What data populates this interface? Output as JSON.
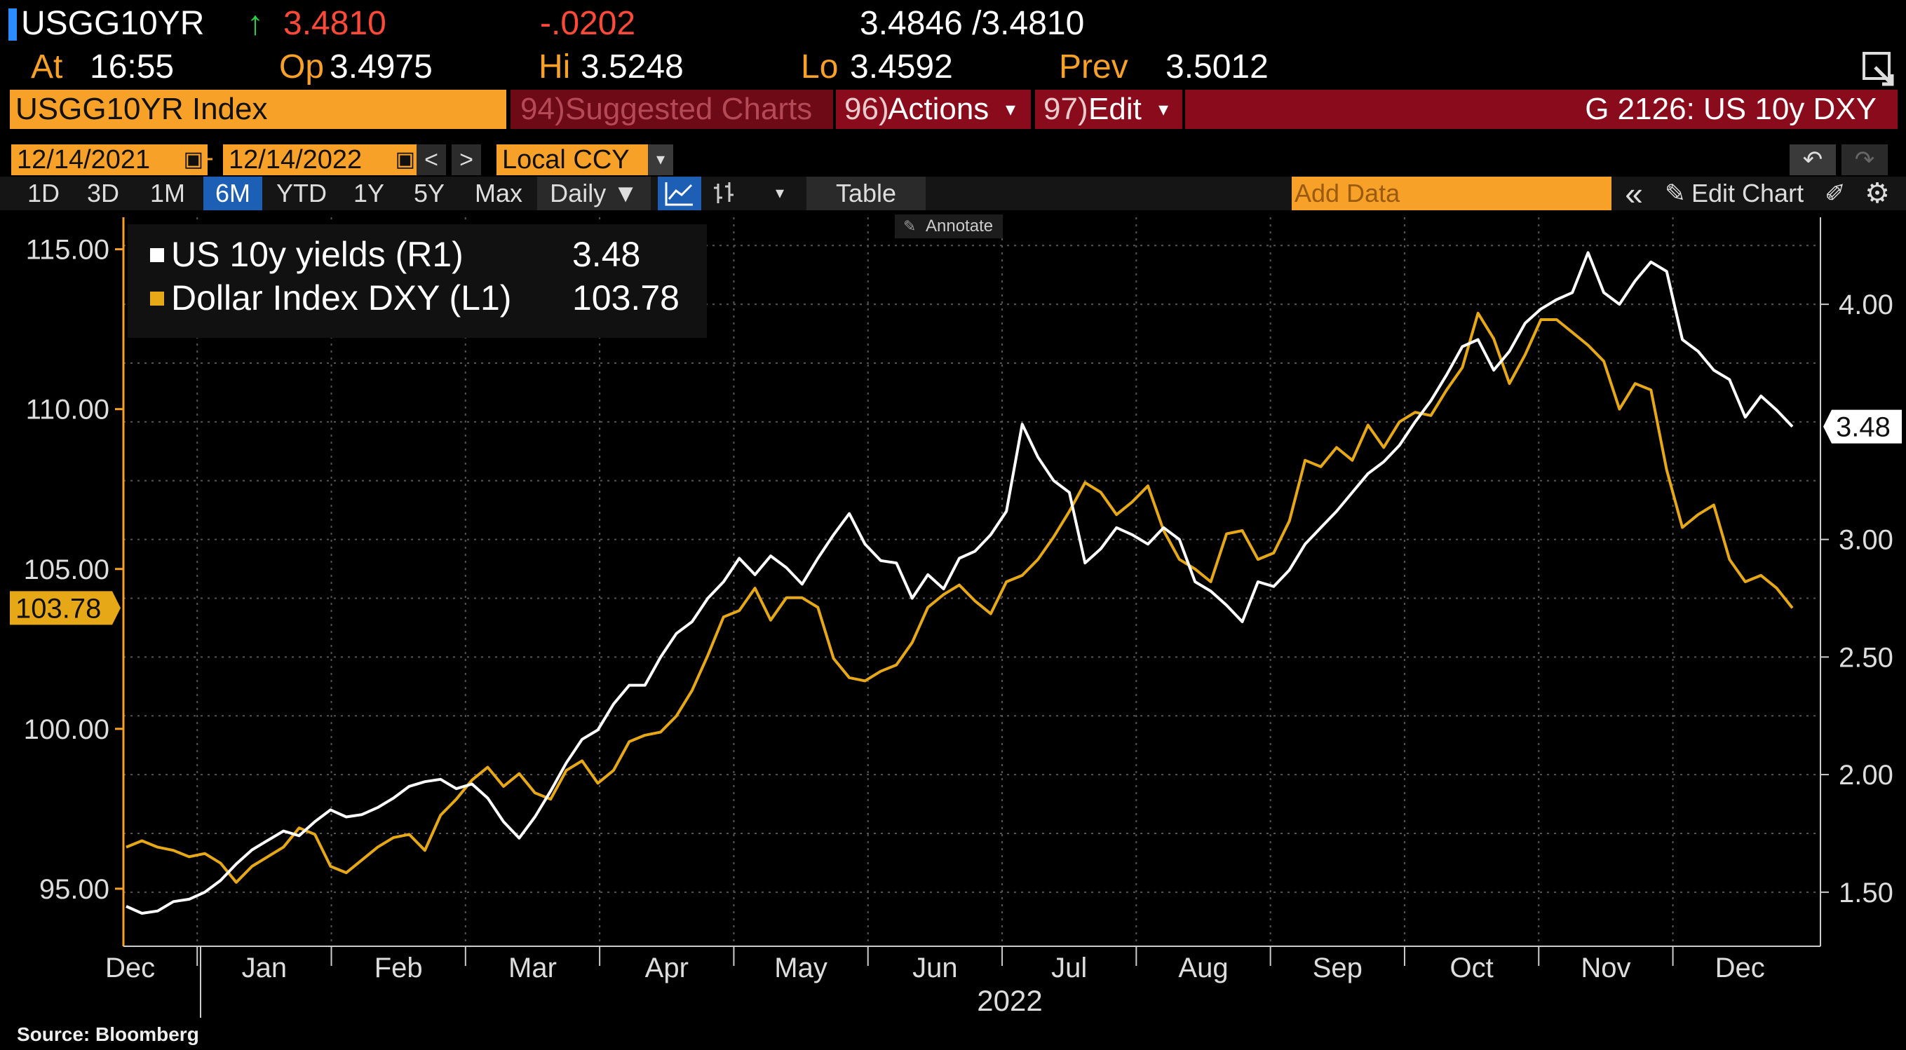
{
  "header": {
    "ticker": "USGG10YR",
    "arrow": "↑",
    "last": "3.4810",
    "change": "-.0202",
    "bid_ask": "3.4846 /3.4810",
    "at_label": "At",
    "at_value": "16:55",
    "op_label": "Op",
    "op_value": "3.4975",
    "hi_label": "Hi",
    "hi_value": "3.5248",
    "lo_label": "Lo",
    "lo_value": "3.4592",
    "prev_label": "Prev",
    "prev_value": "3.5012"
  },
  "menubar": {
    "security": "USGG10YR Index",
    "suggested_num": "94)",
    "suggested": "Suggested Charts",
    "actions_num": "96)",
    "actions": "Actions",
    "edit_num": "97)",
    "edit": "Edit",
    "chart_title": "G 2126: US 10y DXY"
  },
  "daterow": {
    "start": "12/14/2021",
    "dash": "-",
    "end": "12/14/2022",
    "prev": "<",
    "next": ">",
    "currency": "Local CCY"
  },
  "toolbar": {
    "periods": [
      "1D",
      "3D",
      "1M",
      "6M",
      "YTD",
      "1Y",
      "5Y",
      "Max"
    ],
    "active_period": "6M",
    "frequency": "Daily ▼",
    "table": "Table",
    "add_data_placeholder": "Add Data",
    "collapse": "«",
    "edit_chart": "Edit Chart",
    "annotate": "Annotate"
  },
  "footer": {
    "source": "Source: Bloomberg"
  },
  "colors": {
    "yield_line": "#ffffff",
    "dxy_line": "#e6a817",
    "orange_field": "#f8a128",
    "menu_red": "#8a0c1c"
  },
  "chart_data": {
    "type": "line",
    "legend_placement": "top-left",
    "grid": true,
    "xlabel": "2022",
    "x_ticks": [
      "Dec",
      "Jan",
      "Feb",
      "Mar",
      "Apr",
      "May",
      "Jun",
      "Jul",
      "Aug",
      "Sep",
      "Oct",
      "Nov",
      "Dec"
    ],
    "left_axis": {
      "ticks": [
        "95.00",
        "100.00",
        "105.00",
        "110.00",
        "115.00"
      ],
      "range": [
        93.2,
        116.0
      ]
    },
    "right_axis": {
      "ticks": [
        "1.50",
        "2.00",
        "2.50",
        "3.00",
        "4.00"
      ],
      "range": [
        1.27,
        4.37
      ]
    },
    "last_value_labels": {
      "left": "103.78",
      "right": "3.48"
    },
    "series": [
      {
        "name": "US 10y yields (R1)",
        "legend_value": "3.48",
        "axis": "right",
        "values": [
          1.44,
          1.41,
          1.42,
          1.46,
          1.47,
          1.5,
          1.55,
          1.62,
          1.68,
          1.72,
          1.76,
          1.74,
          1.8,
          1.85,
          1.82,
          1.83,
          1.86,
          1.9,
          1.95,
          1.97,
          1.98,
          1.94,
          1.96,
          1.9,
          1.8,
          1.73,
          1.82,
          1.93,
          2.05,
          2.15,
          2.19,
          2.3,
          2.38,
          2.38,
          2.5,
          2.6,
          2.65,
          2.75,
          2.82,
          2.92,
          2.85,
          2.93,
          2.88,
          2.81,
          2.92,
          3.02,
          3.11,
          2.98,
          2.91,
          2.9,
          2.75,
          2.85,
          2.79,
          2.92,
          2.95,
          3.02,
          3.12,
          3.49,
          3.35,
          3.25,
          3.2,
          2.9,
          2.96,
          3.05,
          3.02,
          2.98,
          3.05,
          3.0,
          2.82,
          2.78,
          2.72,
          2.65,
          2.82,
          2.8,
          2.87,
          2.98,
          3.05,
          3.12,
          3.2,
          3.28,
          3.33,
          3.4,
          3.5,
          3.59,
          3.7,
          3.82,
          3.85,
          3.72,
          3.8,
          3.92,
          3.98,
          4.02,
          4.05,
          4.22,
          4.05,
          4.0,
          4.1,
          4.18,
          4.14,
          3.85,
          3.8,
          3.72,
          3.68,
          3.52,
          3.61,
          3.55,
          3.48
        ]
      },
      {
        "name": "Dollar Index DXY (L1)",
        "legend_value": "103.78",
        "axis": "left",
        "values": [
          96.3,
          96.5,
          96.3,
          96.2,
          96.0,
          96.1,
          95.8,
          95.2,
          95.7,
          96.0,
          96.3,
          96.9,
          96.7,
          95.7,
          95.5,
          95.9,
          96.3,
          96.6,
          96.7,
          96.2,
          97.3,
          97.8,
          98.4,
          98.8,
          98.2,
          98.6,
          98.0,
          97.8,
          98.7,
          99.0,
          98.3,
          98.7,
          99.6,
          99.8,
          99.9,
          100.4,
          101.2,
          102.3,
          103.5,
          103.7,
          104.4,
          103.4,
          104.1,
          104.1,
          103.8,
          102.2,
          101.6,
          101.5,
          101.8,
          102.0,
          102.7,
          103.8,
          104.2,
          104.5,
          104.0,
          103.6,
          104.6,
          104.8,
          105.3,
          106.0,
          106.8,
          107.7,
          107.4,
          106.7,
          107.1,
          107.6,
          106.2,
          105.3,
          105.0,
          104.6,
          106.1,
          106.2,
          105.3,
          105.5,
          106.5,
          108.4,
          108.2,
          108.8,
          108.4,
          109.5,
          108.8,
          109.6,
          109.9,
          109.8,
          110.6,
          111.3,
          113.0,
          112.2,
          110.8,
          111.7,
          112.8,
          112.8,
          112.4,
          112.0,
          111.5,
          110.0,
          110.8,
          110.6,
          108.1,
          106.3,
          106.7,
          107.0,
          105.3,
          104.6,
          104.8,
          104.4,
          103.78
        ]
      }
    ]
  }
}
